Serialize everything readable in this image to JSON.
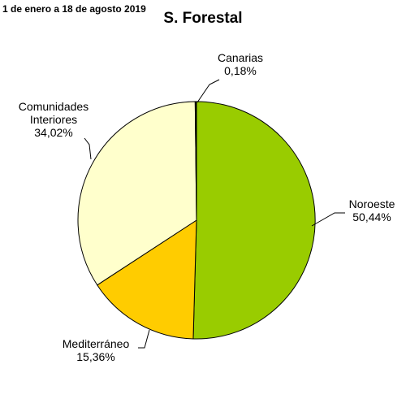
{
  "chart_data": {
    "type": "pie",
    "subtitle": "1 de enero a 18 de agosto 2019",
    "title": "S. Forestal",
    "slices": [
      {
        "name": "Noroeste",
        "value": 50.44,
        "label": "50,44%",
        "color": "#99cc00"
      },
      {
        "name": "Mediterráneo",
        "value": 15.36,
        "label": "15,36%",
        "color": "#ffcc00"
      },
      {
        "name": "Comunidades Interiores",
        "value": 34.02,
        "label": "34,02%",
        "color": "#ffffcc"
      },
      {
        "name": "Canarias",
        "value": 0.18,
        "label": "0,18%",
        "color": "#000000"
      }
    ]
  }
}
